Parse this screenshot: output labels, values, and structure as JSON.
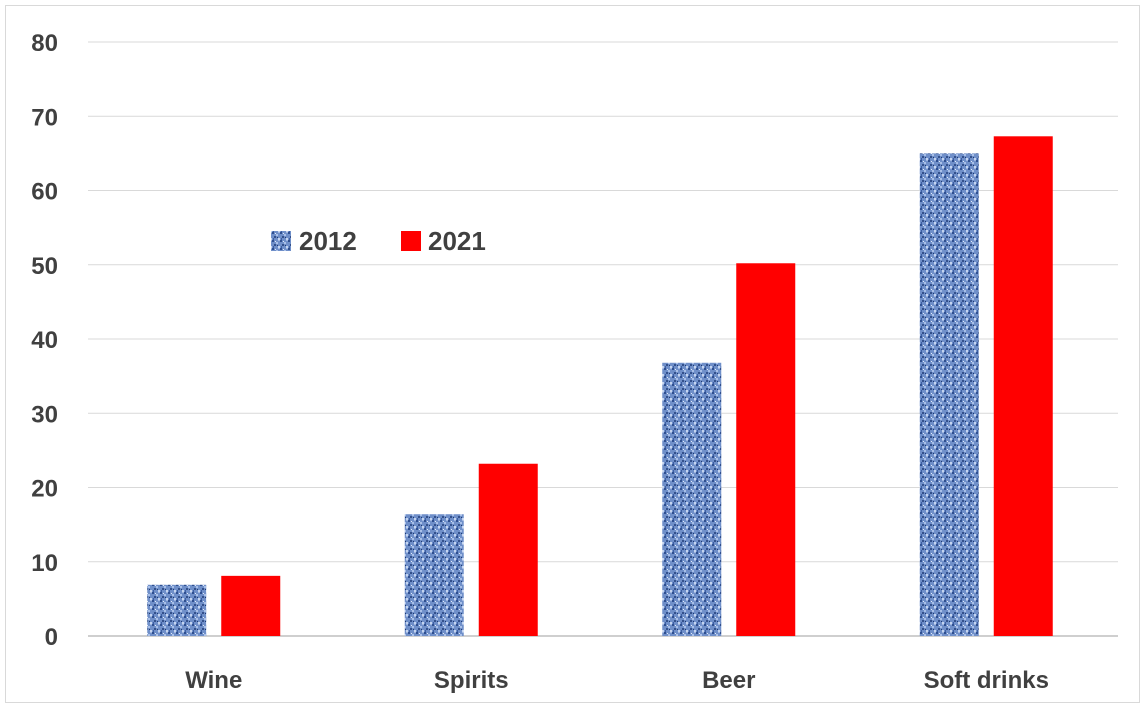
{
  "chart_data": {
    "type": "bar",
    "title": "",
    "xlabel": "",
    "ylabel": "",
    "categories": [
      "Wine",
      "Spirits",
      "Beer",
      "Soft drinks"
    ],
    "series": [
      {
        "name": "2012",
        "values": [
          6.9,
          16.4,
          36.8,
          65.0
        ],
        "color": "#4f72b8",
        "pattern": "textured"
      },
      {
        "name": "2021",
        "values": [
          8.1,
          23.2,
          50.2,
          67.3
        ],
        "color": "#ff0000",
        "pattern": "solid"
      }
    ],
    "ylim": [
      0,
      80
    ],
    "yticks": [
      0,
      10,
      20,
      30,
      40,
      50,
      60,
      70,
      80
    ],
    "grid": true,
    "legend_position": "upper-left"
  }
}
